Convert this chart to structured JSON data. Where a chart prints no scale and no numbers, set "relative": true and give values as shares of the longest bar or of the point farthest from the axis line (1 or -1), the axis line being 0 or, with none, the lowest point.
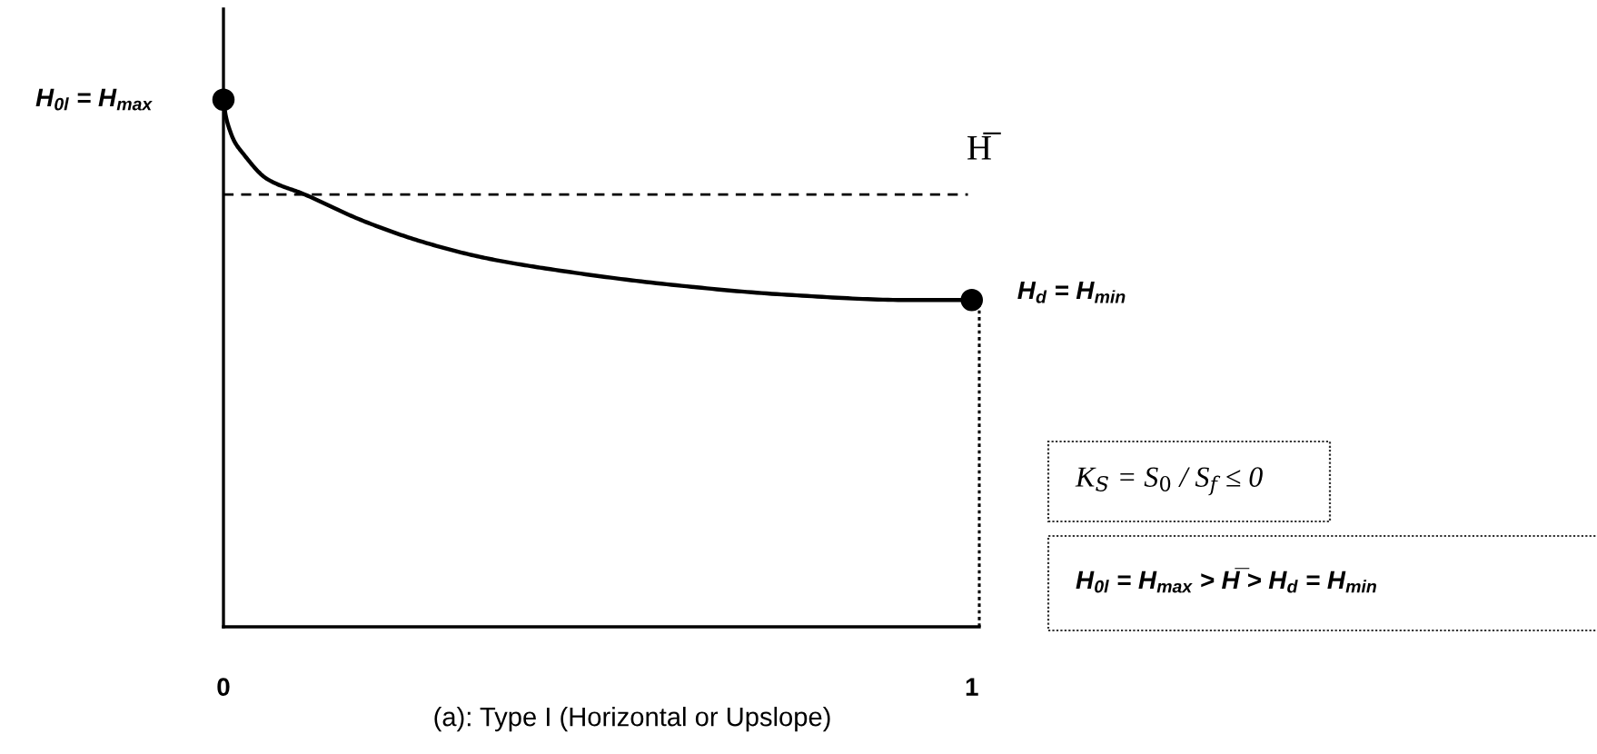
{
  "chart_data": {
    "type": "line",
    "xlabel": "(a): Type I (Horizontal or Upslope)",
    "relative": true,
    "tick_labels": "x",
    "xlim": [
      0,
      1.01
    ],
    "xticks": [
      0,
      1
    ],
    "series": [
      {
        "type": "line",
        "color": "#000000",
        "marker": "none",
        "line_style": "solid",
        "x": [
          0,
          0.003,
          0.009,
          0.015,
          0.025,
          0.058,
          0.109,
          0.187,
          0.267,
          0.349,
          0.43,
          0.592,
          0.753,
          0.915,
          1
        ],
        "values": [
          1,
          0.97,
          0.94,
          0.92,
          0.9,
          0.85,
          0.82,
          0.77,
          0.73,
          0.7,
          0.68,
          0.65,
          0.63,
          0.62,
          0.62
        ]
      },
      {
        "type": "scatter",
        "color": "#000000",
        "marker": "circle",
        "x": [
          0,
          1
        ],
        "values": [
          1,
          0.62
        ]
      }
    ],
    "ref_lines": [
      {
        "axis": "y",
        "value": 0.82,
        "label": "H̅",
        "line_style": "dashed",
        "color": "#000000"
      },
      {
        "axis": "x",
        "value": 1.01,
        "line_style": "dotted",
        "color": "#000000"
      }
    ],
    "annotations": [
      {
        "text": "H$_{0l}$ = H$_{max}$",
        "x": 0,
        "y": 1
      },
      {
        "text": "H$_{d}$ = H$_{min}$",
        "x": 1,
        "y": 0.62
      },
      "K$_{S}$ = S$_{0}$ / S$_{f}$ ≤ 0",
      "H$_{0l}$ = H$_{max}$ > H̅ > H$_{d}$ = H$_{min}$"
    ]
  }
}
